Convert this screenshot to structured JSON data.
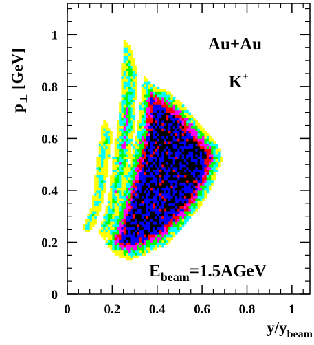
{
  "chart_data": {
    "type": "heatmap",
    "title": "",
    "annotations": {
      "system": "Au+Au",
      "particle": "K",
      "particle_charge": "+",
      "energy_prefix": "E",
      "energy_sub": "beam",
      "energy_value": "=1.5AGeV"
    },
    "xlabel": {
      "main": "y/y",
      "sub": "beam"
    },
    "ylabel": {
      "main": "p",
      "sub": "⊥",
      "unit": " [GeV]"
    },
    "xlim": [
      0,
      1.08
    ],
    "ylim": [
      0,
      1.12
    ],
    "xticks": [
      {
        "value": 0,
        "label": "0"
      },
      {
        "value": 0.2,
        "label": "0.2"
      },
      {
        "value": 0.4,
        "label": "0.4"
      },
      {
        "value": 0.6,
        "label": "0.6"
      },
      {
        "value": 0.8,
        "label": "0.8"
      },
      {
        "value": 1.0,
        "label": "1"
      }
    ],
    "yticks": [
      {
        "value": 0,
        "label": "0"
      },
      {
        "value": 0.2,
        "label": "0.2"
      },
      {
        "value": 0.4,
        "label": "0.4"
      },
      {
        "value": 0.6,
        "label": "0.6"
      },
      {
        "value": 0.8,
        "label": "0.8"
      },
      {
        "value": 1.0,
        "label": "1"
      }
    ],
    "color_levels": [
      "#ffff00",
      "#00ffff",
      "#00ff00",
      "#ff00ff",
      "#ff0000",
      "#0000ff",
      "#000000"
    ],
    "acceptance_regions": [
      {
        "name": "band-1",
        "polygon": [
          [
            0.07,
            0.26
          ],
          [
            0.11,
            0.34
          ],
          [
            0.13,
            0.5
          ],
          [
            0.16,
            0.68
          ],
          [
            0.2,
            0.62
          ],
          [
            0.18,
            0.48
          ],
          [
            0.16,
            0.36
          ],
          [
            0.12,
            0.26
          ],
          [
            0.09,
            0.24
          ]
        ],
        "level_range": [
          0,
          4
        ]
      },
      {
        "name": "band-2",
        "polygon": [
          [
            0.14,
            0.24
          ],
          [
            0.18,
            0.36
          ],
          [
            0.21,
            0.56
          ],
          [
            0.24,
            0.78
          ],
          [
            0.25,
            0.99
          ],
          [
            0.28,
            0.96
          ],
          [
            0.31,
            0.86
          ],
          [
            0.3,
            0.64
          ],
          [
            0.26,
            0.44
          ],
          [
            0.21,
            0.28
          ],
          [
            0.17,
            0.21
          ]
        ],
        "level_range": [
          0,
          5
        ]
      },
      {
        "name": "band-3",
        "polygon": [
          [
            0.17,
            0.19
          ],
          [
            0.21,
            0.31
          ],
          [
            0.26,
            0.45
          ],
          [
            0.31,
            0.63
          ],
          [
            0.34,
            0.85
          ],
          [
            0.38,
            0.81
          ],
          [
            0.45,
            0.78
          ],
          [
            0.53,
            0.72
          ],
          [
            0.6,
            0.64
          ],
          [
            0.67,
            0.58
          ],
          [
            0.69,
            0.52
          ],
          [
            0.64,
            0.41
          ],
          [
            0.58,
            0.32
          ],
          [
            0.5,
            0.24
          ],
          [
            0.44,
            0.19
          ],
          [
            0.36,
            0.16
          ],
          [
            0.28,
            0.13
          ],
          [
            0.22,
            0.15
          ]
        ],
        "level_range": [
          0,
          6
        ]
      }
    ],
    "cell_size": [
      0.01,
      0.01
    ],
    "grid": false,
    "legend": "none"
  }
}
